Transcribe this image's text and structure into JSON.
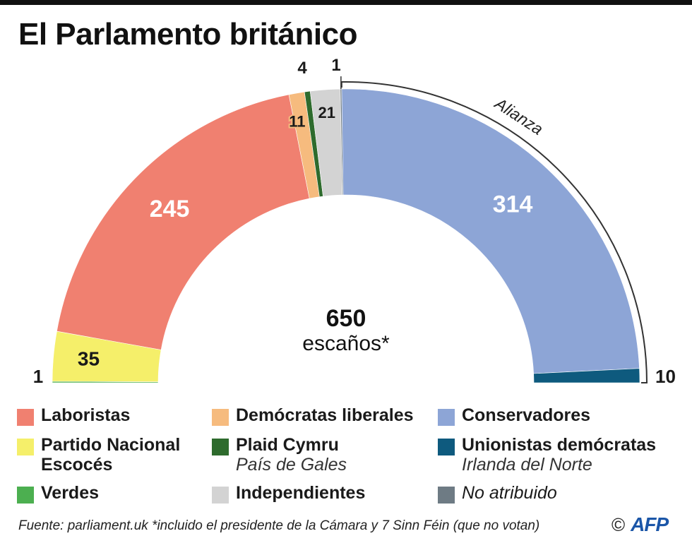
{
  "title": "El Parlamento británico",
  "chart_data": {
    "type": "pie",
    "subtype": "semicircle",
    "title": "El Parlamento británico",
    "total": 650,
    "total_label": "escaños*",
    "categories": [
      "Verdes",
      "Partido Nacional Escocés",
      "Laboristas",
      "Demócratas liberales",
      "Plaid Cymru",
      "Independientes",
      "No atribuido",
      "Conservadores",
      "Unionistas demócratas"
    ],
    "values": [
      1,
      35,
      245,
      11,
      4,
      21,
      1,
      314,
      10
    ],
    "colors": [
      "#4caf50",
      "#f5ef6a",
      "#f08070",
      "#f6bb7e",
      "#2e6b2d",
      "#d3d3d3",
      "#6e7b84",
      "#8da5d6",
      "#0e5a7e"
    ],
    "bracket_label": "Alianza",
    "bracket_parties": [
      "Conservadores",
      "Unionistas demócratas"
    ]
  },
  "legend": [
    {
      "name": "Laboristas",
      "sub": "",
      "color": "#f08070"
    },
    {
      "name": "Demócratas liberales",
      "sub": "",
      "color": "#f6bb7e"
    },
    {
      "name": "Conservadores",
      "sub": "",
      "color": "#8da5d6"
    },
    {
      "name": "Partido Nacional",
      "name2": "Escocés",
      "sub": "",
      "color": "#f5ef6a"
    },
    {
      "name": "Plaid Cymru",
      "sub": "País de Gales",
      "color": "#2e6b2d"
    },
    {
      "name": "Unionistas demócratas",
      "sub": "Irlanda del Norte",
      "color": "#0e5a7e"
    },
    {
      "name": "Verdes",
      "sub": "",
      "color": "#4caf50"
    },
    {
      "name": "Independientes",
      "sub": "",
      "color": "#d3d3d3"
    },
    {
      "name": "No atribuido",
      "sub": "",
      "color": "#6e7b84"
    }
  ],
  "footer": "Fuente: parliament.uk  *incluido el presidente de la Cámara y 7 Sinn Féin (que no votan)",
  "credit": {
    "copyright": "©",
    "agency": "AFP"
  }
}
